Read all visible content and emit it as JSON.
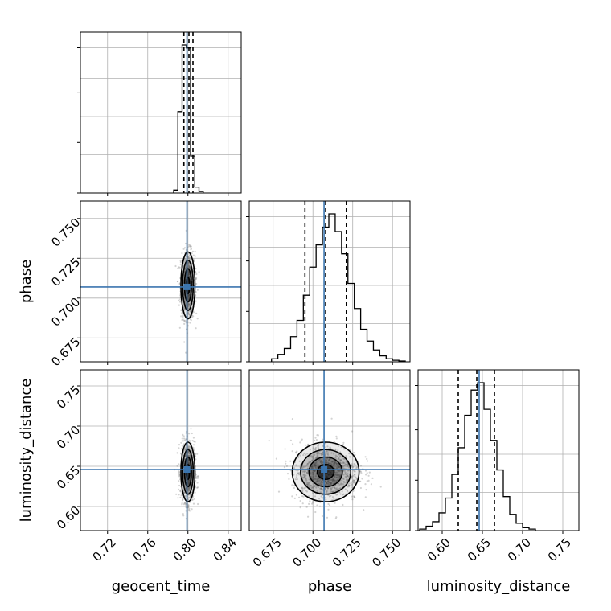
{
  "chart_data": {
    "type": "corner",
    "parameters": [
      {
        "name": "geocent_time",
        "label": "geocent_time",
        "range": [
          0.693,
          0.853
        ],
        "ticks": [
          0.72,
          0.76,
          0.8,
          0.84
        ],
        "tick_labels": [
          "0.72",
          "0.76",
          "0.80",
          "0.84"
        ],
        "truth": 0.799,
        "mean": 0.8,
        "sd": 0.0035,
        "quantiles": [
          0.796,
          0.801,
          0.805
        ]
      },
      {
        "name": "phase",
        "label": "phase",
        "range": [
          0.66,
          0.761
        ],
        "ticks": [
          0.675,
          0.7,
          0.725,
          0.75
        ],
        "tick_labels": [
          "0.675",
          "0.700",
          "0.725",
          "0.750"
        ],
        "truth": 0.707,
        "mean": 0.708,
        "sd": 0.0105,
        "quantiles": [
          0.695,
          0.708,
          0.721
        ]
      },
      {
        "name": "luminosity_distance",
        "label": "luminosity_distance",
        "range": [
          0.57,
          0.77
        ],
        "ticks": [
          0.6,
          0.65,
          0.7,
          0.75
        ],
        "tick_labels": [
          "0.60",
          "0.65",
          "0.70",
          "0.75"
        ],
        "truth": 0.646,
        "mean": 0.643,
        "sd": 0.0185,
        "quantiles": [
          0.62,
          0.643,
          0.665
        ]
      }
    ],
    "histograms": {
      "geocent_time": {
        "edges": [
          0.7858,
          0.79,
          0.7942,
          0.7984,
          0.8026,
          0.8068,
          0.811,
          0.8152
        ],
        "counts": [
          0.02,
          0.55,
          1.0,
          0.98,
          0.25,
          0.04,
          0.01
        ]
      },
      "phase": {
        "edges": [
          0.674,
          0.678,
          0.682,
          0.686,
          0.69,
          0.694,
          0.698,
          0.702,
          0.706,
          0.71,
          0.714,
          0.718,
          0.722,
          0.726,
          0.73,
          0.734,
          0.738,
          0.742,
          0.746,
          0.75,
          0.754,
          0.758
        ],
        "counts": [
          0.02,
          0.05,
          0.09,
          0.17,
          0.28,
          0.45,
          0.64,
          0.79,
          0.91,
          1.0,
          0.88,
          0.73,
          0.53,
          0.36,
          0.22,
          0.14,
          0.08,
          0.04,
          0.02,
          0.01,
          0.005
        ]
      },
      "luminosity_distance": {
        "edges": [
          0.572,
          0.58,
          0.588,
          0.596,
          0.604,
          0.612,
          0.62,
          0.628,
          0.636,
          0.644,
          0.652,
          0.66,
          0.668,
          0.676,
          0.684,
          0.692,
          0.7,
          0.708,
          0.716
        ],
        "counts": [
          0.01,
          0.03,
          0.06,
          0.12,
          0.22,
          0.38,
          0.56,
          0.78,
          0.95,
          1.0,
          0.82,
          0.61,
          0.41,
          0.23,
          0.11,
          0.05,
          0.02,
          0.01
        ]
      }
    },
    "contour_levels": [
      0.5,
      1.0,
      1.5,
      2.0
    ],
    "xlabel": [
      "geocent_time",
      "phase",
      "luminosity_distance"
    ],
    "ylabel": [
      "phase",
      "luminosity_distance"
    ],
    "grid": true,
    "colors": {
      "truth": "#3b75af",
      "lines": "#000000",
      "grid": "#b0b0b0"
    }
  }
}
